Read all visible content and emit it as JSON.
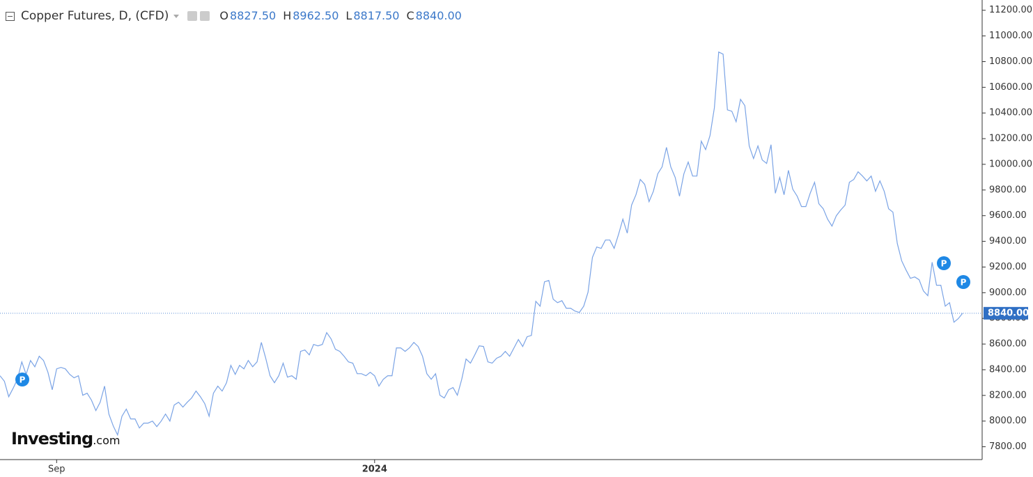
{
  "chart_data": {
    "type": "line",
    "title": "Copper Futures, D, (CFD)",
    "ohlc": [
      {
        "key": "O",
        "label": "8827.50"
      },
      {
        "key": "H",
        "label": "8962.50"
      },
      {
        "key": "L",
        "label": "8817.50"
      },
      {
        "key": "C",
        "label": "8840.00"
      }
    ],
    "last_price": {
      "value": 8840,
      "label": "8840.00"
    },
    "event_marker": "P",
    "logo": {
      "brand": "Investing",
      "suffix": ".com"
    },
    "color": "#7aa3e5",
    "ylim": [
      7700,
      11280
    ],
    "yticks": [
      {
        "value": 7800,
        "label": "7800.00"
      },
      {
        "value": 8000,
        "label": "8000.00"
      },
      {
        "value": 8200,
        "label": "8200.00"
      },
      {
        "value": 8400,
        "label": "8400.00"
      },
      {
        "value": 8600,
        "label": "8600.00"
      },
      {
        "value": 8800,
        "label": "8800.00"
      },
      {
        "value": 9000,
        "label": "9000.00"
      },
      {
        "value": 9200,
        "label": "9200.00"
      },
      {
        "value": 9400,
        "label": "9400.00"
      },
      {
        "value": 9600,
        "label": "9600.00"
      },
      {
        "value": 9800,
        "label": "9800.00"
      },
      {
        "value": 10000,
        "label": "10000.00"
      },
      {
        "value": 10200,
        "label": "10200.00"
      },
      {
        "value": 10400,
        "label": "10400.00"
      },
      {
        "value": 10600,
        "label": "10600.00"
      },
      {
        "value": 10800,
        "label": "10800.00"
      },
      {
        "value": 11000,
        "label": "11000.00"
      },
      {
        "value": 11200,
        "label": "11200.00"
      }
    ],
    "categories": [
      null,
      null,
      null,
      null,
      null,
      null,
      null,
      null,
      null,
      null,
      null,
      null,
      null,
      "Sep",
      null,
      null,
      null,
      null,
      null,
      null,
      null,
      null,
      null,
      null,
      null,
      null,
      null,
      null,
      null,
      null,
      null,
      null,
      null,
      null,
      null,
      null,
      null,
      null,
      null,
      null,
      null,
      null,
      null,
      null,
      null,
      null,
      null,
      null,
      null,
      null,
      null,
      null,
      null,
      null,
      null,
      null,
      null,
      null,
      null,
      null,
      null,
      null,
      null,
      null,
      null,
      null,
      null,
      null,
      null,
      null,
      null,
      null,
      null,
      null,
      null,
      null,
      null,
      null,
      null,
      null,
      null,
      null,
      null,
      null,
      null,
      null,
      "2024",
      null,
      null,
      null,
      null,
      null,
      null,
      null,
      null,
      null,
      null,
      null,
      null,
      null,
      null,
      null,
      null,
      null,
      null,
      null,
      null,
      null,
      null,
      null,
      null,
      null,
      null,
      null,
      null,
      null,
      null,
      null,
      null,
      null,
      null,
      null,
      null,
      null,
      null,
      null,
      null,
      null,
      null,
      null,
      null,
      null,
      null,
      null,
      null,
      null,
      null,
      null,
      null,
      null,
      null,
      null,
      null,
      null,
      null,
      null,
      null,
      null,
      null,
      null,
      null,
      null,
      null,
      null,
      null,
      null,
      null,
      null,
      null,
      null,
      null,
      null,
      null,
      null,
      null,
      null,
      null,
      null,
      null,
      null,
      null,
      null,
      null,
      null,
      null,
      null,
      null,
      null,
      null,
      null,
      null,
      null,
      null,
      null,
      null,
      null,
      null,
      null,
      null,
      null,
      null,
      null,
      null,
      null,
      null,
      null,
      null,
      null,
      null,
      null,
      null,
      null,
      null,
      null,
      null,
      null,
      null,
      null,
      null,
      null,
      null,
      null,
      null,
      null,
      null,
      null,
      null,
      null,
      null,
      null,
      null,
      null
    ],
    "values": [
      8353,
      8310,
      8190,
      8255,
      8326,
      8461,
      8364,
      8472,
      8423,
      8505,
      8472,
      8380,
      8244,
      8407,
      8418,
      8407,
      8364,
      8337,
      8353,
      8201,
      8217,
      8163,
      8082,
      8147,
      8272,
      8055,
      7962,
      7892,
      8038,
      8093,
      8017,
      8017,
      7946,
      7984,
      7984,
      8000,
      7957,
      8000,
      8055,
      8000,
      8125,
      8147,
      8109,
      8147,
      8180,
      8234,
      8190,
      8136,
      8038,
      8217,
      8272,
      8234,
      8299,
      8434,
      8364,
      8434,
      8407,
      8472,
      8423,
      8461,
      8613,
      8489,
      8353,
      8299,
      8353,
      8451,
      8342,
      8353,
      8326,
      8543,
      8554,
      8516,
      8597,
      8586,
      8597,
      8689,
      8640,
      8559,
      8543,
      8505,
      8461,
      8451,
      8369,
      8369,
      8353,
      8380,
      8353,
      8272,
      8326,
      8353,
      8353,
      8570,
      8570,
      8543,
      8570,
      8613,
      8581,
      8505,
      8369,
      8326,
      8369,
      8201,
      8180,
      8244,
      8261,
      8201,
      8326,
      8483,
      8451,
      8516,
      8586,
      8581,
      8461,
      8451,
      8489,
      8505,
      8543,
      8505,
      8570,
      8635,
      8581,
      8657,
      8667,
      8933,
      8895,
      9085,
      9095,
      8949,
      8922,
      8938,
      8879,
      8879,
      8857,
      8846,
      8895,
      9004,
      9275,
      9356,
      9345,
      9410,
      9410,
      9345,
      9454,
      9573,
      9464,
      9682,
      9763,
      9882,
      9844,
      9709,
      9790,
      9926,
      9980,
      10132,
      9980,
      9898,
      9752,
      9926,
      10018,
      9909,
      9909,
      10180,
      10115,
      10224,
      10441,
      10875,
      10858,
      10424,
      10414,
      10332,
      10506,
      10457,
      10143,
      10045,
      10143,
      10034,
      10007,
      10153,
      9774,
      9898,
      9763,
      9953,
      9806,
      9752,
      9671,
      9671,
      9774,
      9860,
      9693,
      9654,
      9573,
      9519,
      9600,
      9644,
      9682,
      9860,
      9882,
      9942,
      9909,
      9871,
      9909,
      9790,
      9871,
      9790,
      9654,
      9627,
      9383,
      9248,
      9177,
      9112,
      9123,
      9101,
      9014,
      8977,
      9237,
      9058,
      9058,
      8895,
      8922,
      8770,
      8798,
      8840
    ]
  }
}
